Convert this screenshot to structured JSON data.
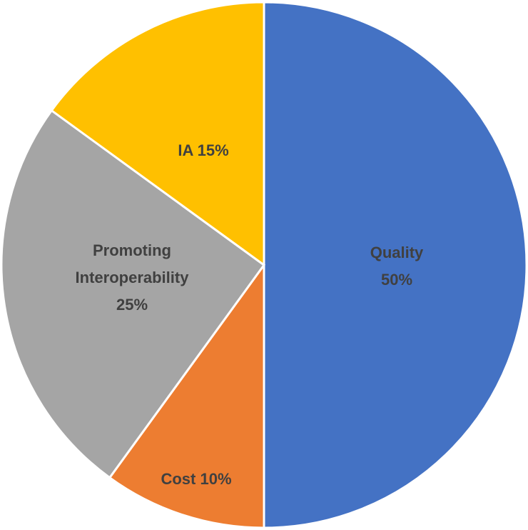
{
  "chart_data": {
    "type": "pie",
    "title": "",
    "start_angle_deg": 0,
    "direction": "clockwise",
    "slices": [
      {
        "name": "Quality",
        "value": 50,
        "color": "#4472C4",
        "label_lines": [
          "Quality",
          "50%"
        ]
      },
      {
        "name": "Cost",
        "value": 10,
        "color": "#ED7D31",
        "label_lines": [
          "Cost 10%"
        ]
      },
      {
        "name": "Promoting Interoperability",
        "value": 25,
        "color": "#A5A5A5",
        "label_lines": [
          "Promoting",
          "Interoperability",
          "25%"
        ]
      },
      {
        "name": "IA",
        "value": 15,
        "color": "#FFC000",
        "label_lines": [
          "IA 15%"
        ]
      }
    ],
    "legend": "none",
    "data_labels": "inside"
  }
}
